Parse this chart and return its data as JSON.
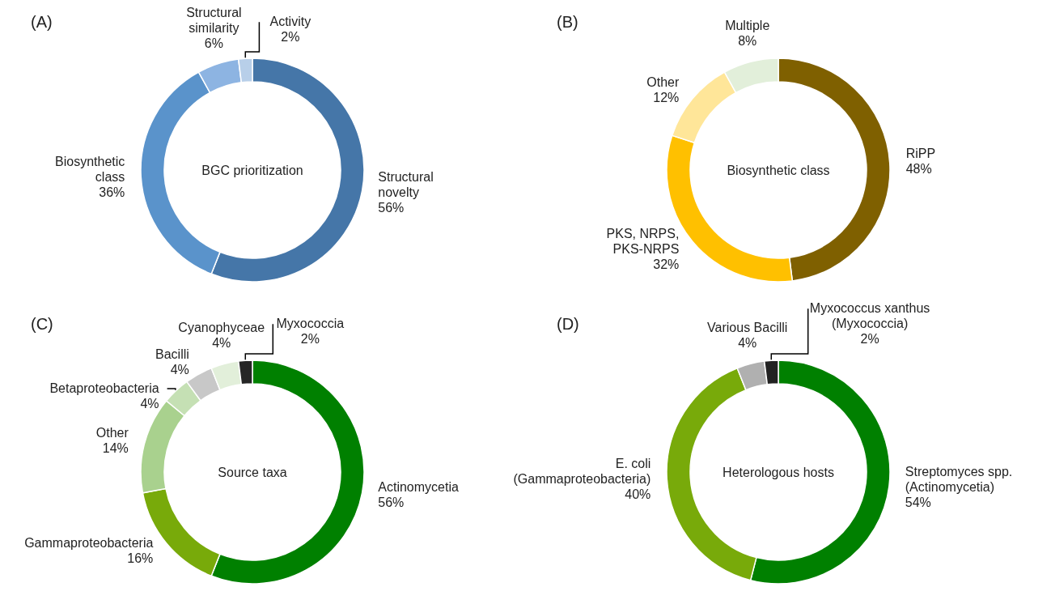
{
  "chart_data": [
    {
      "type": "donut",
      "title": "(A)",
      "annotations": [
        "BGC prioritization"
      ],
      "categories": [
        "Structural novelty",
        "Biosynthetic class",
        "Structural similarity",
        "Activity"
      ],
      "values": [
        56,
        36,
        6,
        2
      ],
      "value_labels": [
        "56%",
        "36%",
        "6%",
        "2%"
      ],
      "colors": [
        "#4576a8",
        "#5a93cb",
        "#8db4e2",
        "#b8cfe9"
      ]
    },
    {
      "type": "donut",
      "title": "(B)",
      "annotations": [
        "Biosynthetic class"
      ],
      "categories": [
        "RiPP",
        "PKS, NRPS, PKS-NRPS",
        "Other",
        "Multiple"
      ],
      "values": [
        48,
        32,
        12,
        8
      ],
      "value_labels": [
        "48%",
        "32%",
        "12%",
        "8%"
      ],
      "colors": [
        "#7f6000",
        "#ffc000",
        "#ffe699",
        "#e2efda"
      ]
    },
    {
      "type": "donut",
      "title": "(C)",
      "annotations": [
        "Source taxa"
      ],
      "categories": [
        "Actinomycetia",
        "Gammaproteobacteria",
        "Other",
        "Betaproteobacteria",
        "Bacilli",
        "Cyanophyceae",
        "Myxococcia"
      ],
      "values": [
        56,
        16,
        14,
        4,
        4,
        4,
        2
      ],
      "value_labels": [
        "56%",
        "16%",
        "14%",
        "4%",
        "4%",
        "4%",
        "2%"
      ],
      "colors": [
        "#008000",
        "#78aa0a",
        "#a9d18e",
        "#c5e0b4",
        "#c8c8c8",
        "#e2efda",
        "#262626"
      ]
    },
    {
      "type": "donut",
      "title": "(D)",
      "annotations": [
        "Heterologous hosts"
      ],
      "categories": [
        "Streptomyces spp. (Actinomycetia)",
        "E. coli (Gammaproteobacteria)",
        "Various Bacilli",
        "Myxococcus xanthus (Myxococcia)"
      ],
      "values": [
        54,
        40,
        4,
        2
      ],
      "value_labels": [
        "54%",
        "40%",
        "4%",
        "2%"
      ],
      "colors": [
        "#008000",
        "#78aa0a",
        "#b0b0b0",
        "#222222"
      ]
    }
  ]
}
